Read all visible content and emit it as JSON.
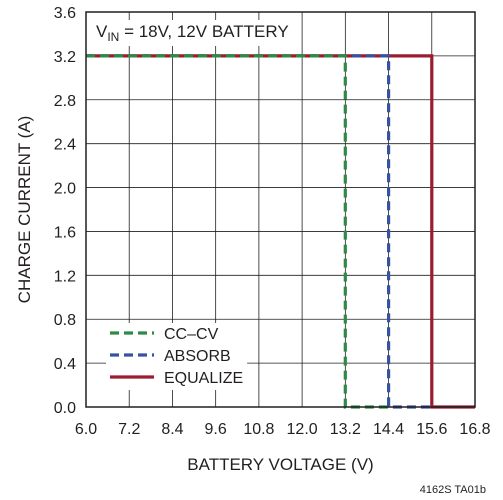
{
  "chart_data": {
    "type": "line",
    "annotation": {
      "prefix": "V",
      "subscript": "IN",
      "suffix": " = 18V, 12V BATTERY"
    },
    "xlabel": "BATTERY VOLTAGE (V)",
    "ylabel": "CHARGE CURRENT (A)",
    "xlim": [
      6.0,
      16.8
    ],
    "ylim": [
      0.0,
      3.6
    ],
    "x_ticks": [
      "6.0",
      "7.2",
      "8.4",
      "9.6",
      "10.8",
      "12.0",
      "13.2",
      "14.4",
      "15.6",
      "16.8"
    ],
    "y_ticks": [
      "0.0",
      "0.4",
      "0.8",
      "1.2",
      "1.6",
      "2.0",
      "2.4",
      "2.8",
      "3.2",
      "3.6"
    ],
    "grid": true,
    "legend_position": "bottom-left",
    "series": [
      {
        "name": "EQUALIZE",
        "color": "#9b1b30",
        "dash": "solid",
        "x": [
          6.0,
          15.6,
          15.6,
          16.8
        ],
        "y": [
          3.2,
          3.2,
          0.0,
          0.0
        ]
      },
      {
        "name": "ABSORB",
        "color": "#3653a3",
        "dash": "dashed",
        "x": [
          6.0,
          14.4,
          14.4,
          15.6
        ],
        "y": [
          3.2,
          3.2,
          0.0,
          0.0
        ]
      },
      {
        "name": "CC–CV",
        "color": "#2e8b46",
        "dash": "dashed",
        "x": [
          6.0,
          13.2,
          13.2,
          14.4
        ],
        "y": [
          3.2,
          3.2,
          0.0,
          0.0
        ]
      }
    ],
    "legend_order": [
      "CC–CV",
      "ABSORB",
      "EQUALIZE"
    ],
    "figure_id": "4162S TA01b"
  }
}
